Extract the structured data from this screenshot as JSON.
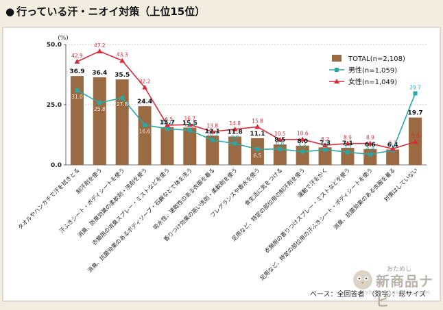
{
  "title": "行っている汗・ニオイ対策（上位15位）",
  "footnote": "ベース：全回答者　（数字）：総サイズ",
  "logo": {
    "small": "おためし",
    "big": "新商品ナビ",
    "url": "shin-shouhin.com"
  },
  "colors": {
    "bar": "#9a6b43",
    "male": "#2aa7a5",
    "female": "#d62c3c",
    "background": "#f3ece0",
    "plot_bg": "#ffffff"
  },
  "chart_data": {
    "type": "bar",
    "unit_label": "(%)",
    "ylim": [
      0,
      50
    ],
    "yticks": [
      0.0,
      25.0,
      50.0
    ],
    "ytick_labels": [
      "0.0",
      "25.0",
      "50.0"
    ],
    "categories": [
      "タオルやハンカチで汗を拭きとる",
      "制汗剤を使う",
      "汗ふきシート・ボディシートを使う",
      "消臭、防臭効果の柔軟剤・洗剤を使う",
      "衣類用の消臭スプレー・ミストなどを使う",
      "消臭、抗菌効果のあるボディソープ・石鹸などで体を洗う",
      "吸水性、速乾性のある衣服を着る",
      "香りつけ効果の高い洗剤・柔軟剤を使う",
      "フレグランスや香水を使う",
      "食生活に気をつける",
      "足用など、特定の部位用の制汗剤を使う",
      "運動で汗をかく",
      "衣類用の香りつけスプレー・ミストなどを使う",
      "足用など、特定の部位用の汗ふきシート・ボディシートを使う",
      "消臭、抗菌効果のある衣服を着る",
      "対策はしていない"
    ],
    "series": [
      {
        "name": "TOTAL(n=2,108)",
        "kind": "bar",
        "values": [
          36.9,
          36.4,
          35.5,
          24.4,
          15.7,
          15.5,
          12.1,
          11.8,
          11.1,
          8.5,
          8.0,
          7.3,
          7.1,
          6.6,
          6.4,
          19.7
        ]
      },
      {
        "name": "男性(n=1,059)",
        "kind": "line",
        "marker": "square",
        "values": [
          31.0,
          25.8,
          27.8,
          16.6,
          15.0,
          14.4,
          10.3,
          8.9,
          6.5,
          6.6,
          5.5,
          6.3,
          5.3,
          4.4,
          6.1,
          29.7
        ]
      },
      {
        "name": "女性(n=1,049)",
        "kind": "line",
        "marker": "triangle",
        "values": [
          42.9,
          47.2,
          43.3,
          32.2,
          16.5,
          16.7,
          13.8,
          14.8,
          15.8,
          10.5,
          10.6,
          8.2,
          8.9,
          8.9,
          6.7,
          9.6
        ]
      }
    ],
    "legend": "top-right"
  }
}
